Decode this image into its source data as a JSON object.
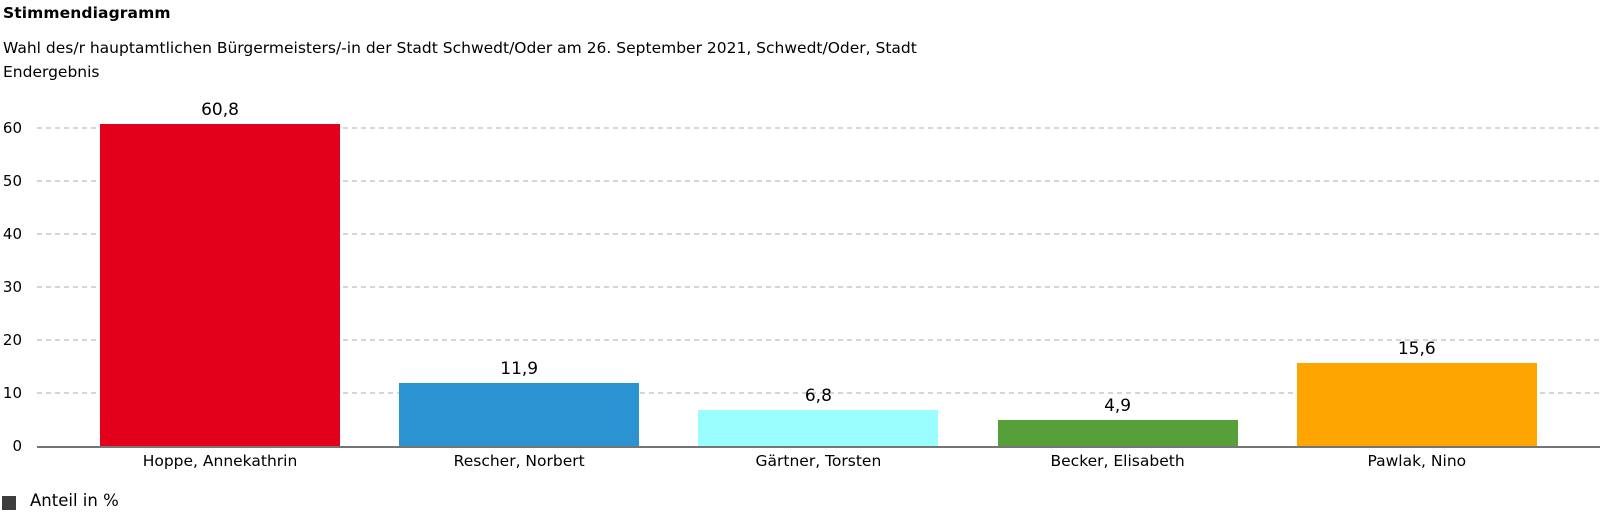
{
  "chart_data": {
    "type": "bar",
    "title": "Stimmendiagramm",
    "subtitle_lines": [
      "Wahl des/r hauptamtlichen Bürgermeisters/-in der Stadt Schwedt/Oder am 26. September 2021, Schwedt/Oder, Stadt",
      "Endergebnis"
    ],
    "categories": [
      "Hoppe, Annekathrin",
      "Rescher, Norbert",
      "Gärtner, Torsten",
      "Becker, Elisabeth",
      "Pawlak, Nino"
    ],
    "values": [
      60.8,
      11.9,
      6.8,
      4.9,
      15.6
    ],
    "value_labels": [
      "60,8",
      "11,9",
      "6,8",
      "4,9",
      "15,6"
    ],
    "bar_colors": [
      "#e2001a",
      "#2b93d1",
      "#9afdff",
      "#55a038",
      "#ffa502"
    ],
    "y_ticks": [
      0,
      10,
      20,
      30,
      40,
      50,
      60
    ],
    "y_tick_labels": [
      "0",
      "10",
      "20",
      "30",
      "40",
      "50",
      "60"
    ],
    "ylim": [
      0,
      63
    ],
    "xlabel": "",
    "ylabel": "",
    "grid": "horizontal-dashed",
    "legend_position": "bottom-left",
    "legend_label": "Anteil in %",
    "legend_swatch_color": "#3d3d3d",
    "grid_color": "#d6d6d6",
    "axis_color": "#757575",
    "text_color": "#000000",
    "background_color": "#ffffff"
  }
}
